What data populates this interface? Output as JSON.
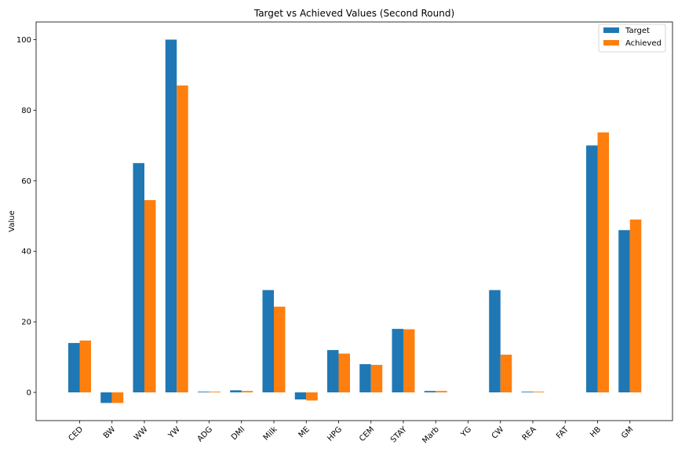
{
  "chart_data": {
    "type": "bar",
    "title": "Target vs Achieved Values (Second Round)",
    "xlabel": "",
    "ylabel": "Value",
    "ylim": [
      -8,
      105
    ],
    "yticks": [
      0,
      20,
      40,
      60,
      80,
      100
    ],
    "grid": false,
    "legend_position": "top-right",
    "categories": [
      "CED",
      "BW",
      "WW",
      "YW",
      "ADG",
      "DMI",
      "Milk",
      "ME",
      "HPG",
      "CEM",
      "STAY",
      "Marb",
      "YG",
      "CW",
      "REA",
      "FAT",
      "HB",
      "GM"
    ],
    "series": [
      {
        "name": "Target",
        "color": "#1f77b4",
        "values": [
          14,
          -3,
          65,
          100,
          0.2,
          0.6,
          29,
          -2,
          12,
          8,
          18,
          0.4,
          0,
          29,
          0.2,
          0,
          70,
          46
        ]
      },
      {
        "name": "Achieved",
        "color": "#ff7f0e",
        "values": [
          14.7,
          -3,
          54.5,
          87,
          0.2,
          0.4,
          24.3,
          -2.3,
          11,
          7.8,
          17.9,
          0.4,
          0,
          10.7,
          0.2,
          0,
          73.7,
          49
        ]
      }
    ]
  }
}
